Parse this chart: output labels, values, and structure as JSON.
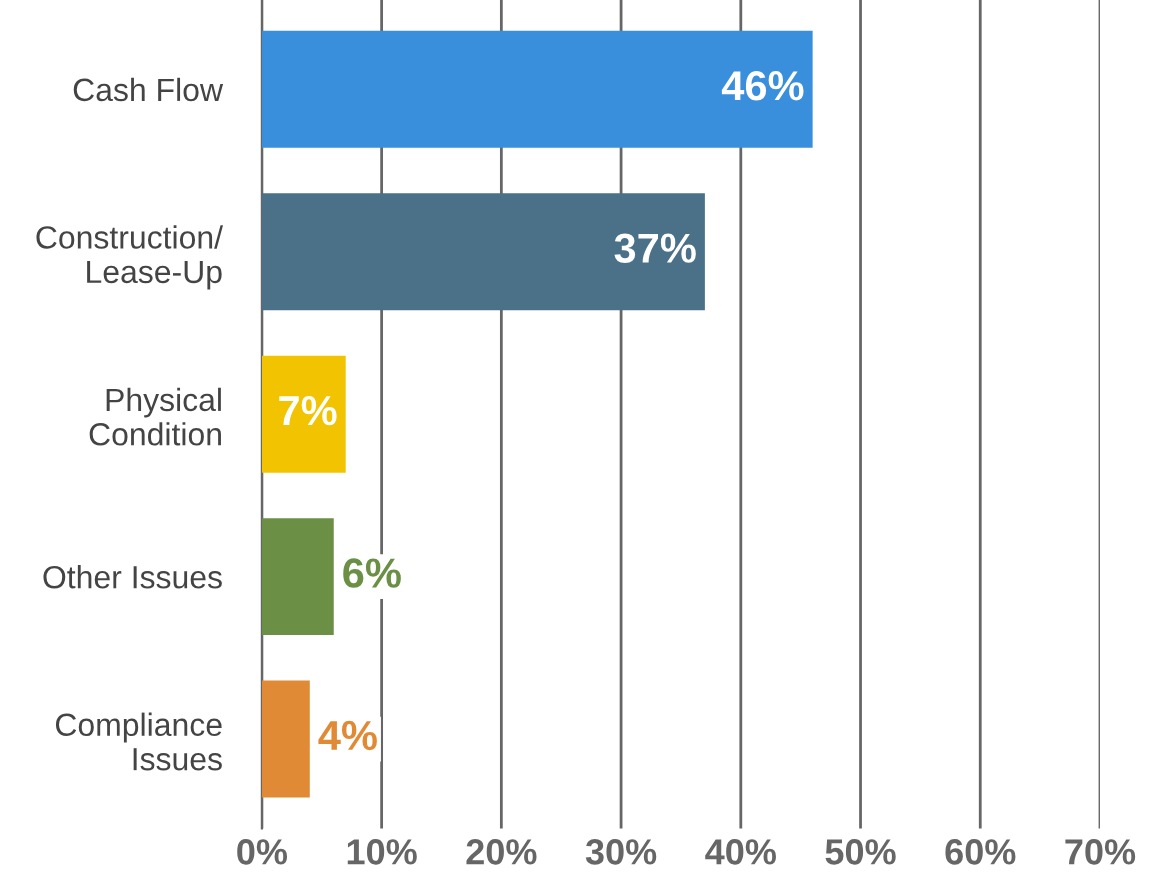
{
  "chart_data": {
    "type": "bar",
    "orientation": "horizontal",
    "categories": [
      "Cash Flow",
      "Construction/\nLease-Up",
      "Physical\nCondition",
      "Other Issues",
      "Compliance\nIssues"
    ],
    "values": [
      46,
      37,
      7,
      6,
      4
    ],
    "colors": [
      "#3a8fdc",
      "#4a7188",
      "#f2c300",
      "#6a8f45",
      "#e08a35"
    ],
    "value_labels": [
      "46%",
      "37%",
      "7%",
      "6%",
      "4%"
    ],
    "xlim": [
      0,
      70
    ],
    "xticks": [
      {
        "value": 0,
        "label": "0%"
      },
      {
        "value": 10,
        "label": "10%"
      },
      {
        "value": 20,
        "label": "20%"
      },
      {
        "value": 30,
        "label": "30%"
      },
      {
        "value": 40,
        "label": "40%"
      },
      {
        "value": 50,
        "label": "50%"
      },
      {
        "value": 60,
        "label": "60%"
      },
      {
        "value": 70,
        "label": "70%"
      }
    ],
    "grid": "x",
    "legend": false
  }
}
